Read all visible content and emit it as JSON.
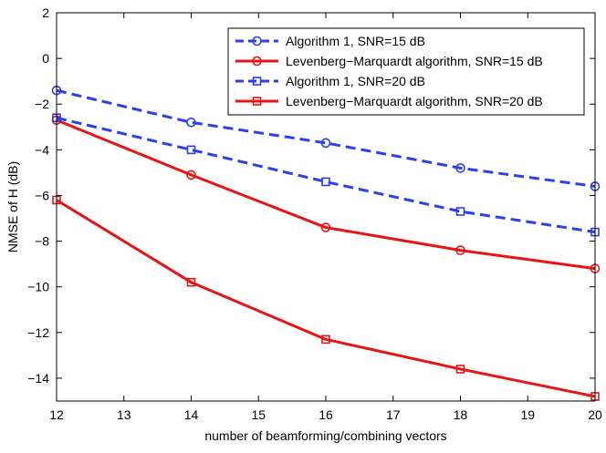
{
  "chart_data": {
    "type": "line",
    "title": "",
    "xlabel": "number of beamforming/combining vectors",
    "ylabel": "NMSE of H (dB)",
    "xlim": [
      12,
      20
    ],
    "ylim": [
      -15,
      2
    ],
    "xticks": [
      12,
      13,
      14,
      15,
      16,
      17,
      18,
      19,
      20
    ],
    "yticks": [
      2,
      0,
      -2,
      -4,
      -6,
      -8,
      -10,
      -12,
      -14
    ],
    "x": [
      12,
      14,
      16,
      18,
      20
    ],
    "grid": false,
    "legend_location": "top-right",
    "series": [
      {
        "name": "Algorithm 1, SNR=15 dB",
        "values": [
          -1.4,
          -2.8,
          -3.7,
          -4.8,
          -5.6
        ],
        "color": "#2b3ff0",
        "line": "dashed",
        "marker": "circle"
      },
      {
        "name": "Levenberg−Marquardt algorithm, SNR=15 dB",
        "values": [
          -2.7,
          -5.1,
          -7.4,
          -8.4,
          -9.2
        ],
        "color": "#e81414",
        "line": "solid",
        "marker": "circle"
      },
      {
        "name": "Algorithm 1, SNR=20 dB",
        "values": [
          -2.6,
          -4.0,
          -5.4,
          -6.7,
          -7.6
        ],
        "color": "#2b3ff0",
        "line": "dashed",
        "marker": "square"
      },
      {
        "name": "Levenberg−Marquardt algorithm, SNR=20 dB",
        "values": [
          -6.2,
          -9.8,
          -12.3,
          -13.6,
          -14.8
        ],
        "color": "#e81414",
        "line": "solid",
        "marker": "square"
      }
    ]
  }
}
